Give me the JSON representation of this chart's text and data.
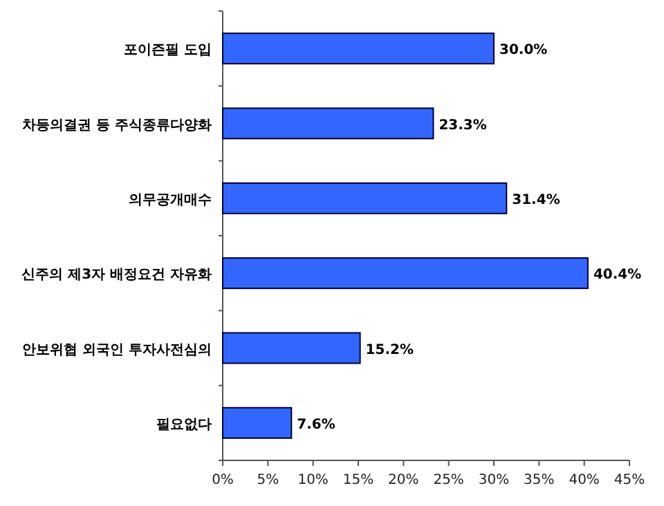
{
  "chart_data": {
    "type": "bar",
    "orientation": "horizontal",
    "categories": [
      "포이즌필 도입",
      "차등의결권 등 주식종류다양화",
      "의무공개매수",
      "신주의 제3자 배정요건 자유화",
      "안보위협 외국인 투자사전심의",
      "필요없다"
    ],
    "values": [
      30.0,
      23.3,
      31.4,
      40.4,
      15.2,
      7.6
    ],
    "value_labels": [
      "30.0%",
      "23.3%",
      "31.4%",
      "40.4%",
      "15.2%",
      "7.6%"
    ],
    "color": "#3366ff",
    "xlim": [
      0,
      45
    ],
    "xticks": [
      {
        "value": 0,
        "label": "0%"
      },
      {
        "value": 5,
        "label": "5%"
      },
      {
        "value": 10,
        "label": "10%"
      },
      {
        "value": 15,
        "label": "15%"
      },
      {
        "value": 20,
        "label": "20%"
      },
      {
        "value": 25,
        "label": "25%"
      },
      {
        "value": 30,
        "label": "30%"
      },
      {
        "value": 35,
        "label": "35%"
      },
      {
        "value": 40,
        "label": "40%"
      },
      {
        "value": 45,
        "label": "45%"
      }
    ],
    "grid": false
  }
}
